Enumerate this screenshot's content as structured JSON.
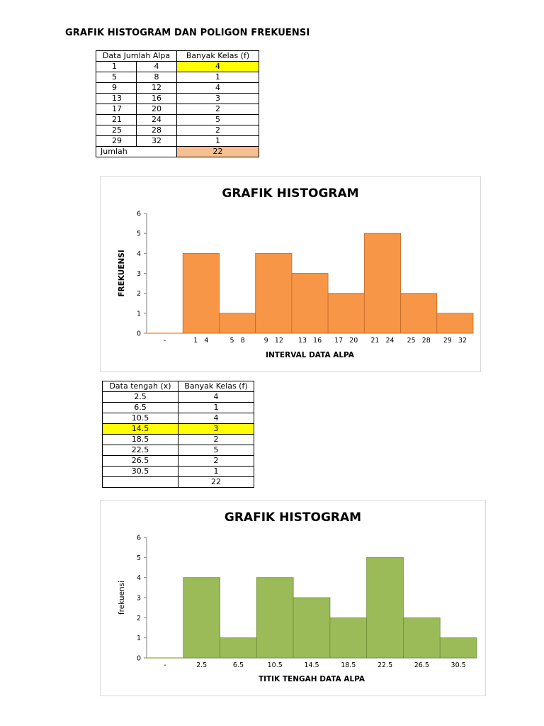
{
  "page": {
    "title": "GRAFIK HISTOGRAM DAN POLIGON FREKUENSI"
  },
  "table1": {
    "headers": [
      "Data Jumlah Alpa",
      "Banyak Kelas (f)"
    ],
    "rows": [
      {
        "lo": "1",
        "hi": "4",
        "f": "4"
      },
      {
        "lo": "5",
        "hi": "8",
        "f": "1"
      },
      {
        "lo": "9",
        "hi": "12",
        "f": "4"
      },
      {
        "lo": "13",
        "hi": "16",
        "f": "3"
      },
      {
        "lo": "17",
        "hi": "20",
        "f": "2"
      },
      {
        "lo": "21",
        "hi": "24",
        "f": "5"
      },
      {
        "lo": "25",
        "hi": "28",
        "f": "2"
      },
      {
        "lo": "29",
        "hi": "32",
        "f": "1"
      }
    ],
    "total_label": "Jumlah",
    "total_value": "22",
    "highlight_yellow": "#ffff00",
    "highlight_orange": "#f8c090"
  },
  "table2": {
    "headers": [
      "Data tengah (x)",
      "Banyak Kelas (f)"
    ],
    "rows": [
      {
        "x": "2.5",
        "f": "4"
      },
      {
        "x": "6.5",
        "f": "1"
      },
      {
        "x": "10.5",
        "f": "4"
      },
      {
        "x": "14.5",
        "f": "3"
      },
      {
        "x": "18.5",
        "f": "2"
      },
      {
        "x": "22.5",
        "f": "5"
      },
      {
        "x": "26.5",
        "f": "2"
      },
      {
        "x": "30.5",
        "f": "1"
      }
    ],
    "total_value": "22"
  },
  "chart_data": [
    {
      "type": "bar",
      "title": "GRAFIK HISTOGRAM",
      "xlabel": "INTERVAL DATA ALPA",
      "ylabel": "FREKUENSI",
      "categories": [
        "-",
        "1   4",
        "5   8",
        "9   12",
        "13   16",
        "17   20",
        "21   24",
        "25   28",
        "29   32"
      ],
      "values": [
        0,
        4,
        1,
        4,
        3,
        2,
        5,
        2,
        1
      ],
      "ylim": [
        0,
        6
      ],
      "yticks": [
        0,
        1,
        2,
        3,
        4,
        5,
        6
      ],
      "bar_color": "#f79646",
      "edge_color": "#c0692a",
      "grid": false,
      "legend": "none"
    },
    {
      "type": "bar",
      "title": "GRAFIK HISTOGRAM",
      "xlabel": "TITIK TENGAH DATA ALPA",
      "ylabel": "frekuensi",
      "categories": [
        "-",
        "2.5",
        "6.5",
        "10.5",
        "14.5",
        "18.5",
        "22.5",
        "26.5",
        "30.5"
      ],
      "values": [
        0,
        4,
        1,
        4,
        3,
        2,
        5,
        2,
        1
      ],
      "ylim": [
        0,
        6
      ],
      "yticks": [
        0,
        1,
        2,
        3,
        4,
        5,
        6
      ],
      "bar_color": "#9bbb59",
      "edge_color": "#6f8b36",
      "grid": false,
      "legend": "none"
    }
  ]
}
